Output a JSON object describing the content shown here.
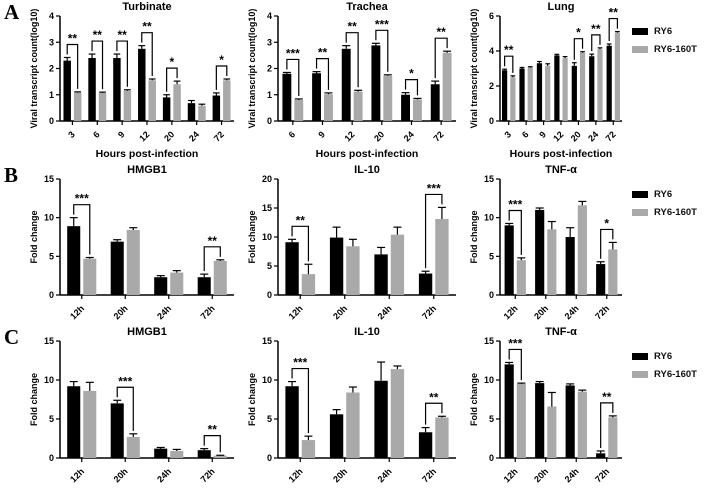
{
  "legend": {
    "items": [
      {
        "label": "RY6",
        "color": "#000000"
      },
      {
        "label": "RY6-160T",
        "color": "#a9a9a9"
      }
    ]
  },
  "panels": [
    {
      "letter": "A"
    },
    {
      "letter": "B"
    },
    {
      "letter": "C"
    }
  ],
  "chart_data": [
    {
      "type": "bar",
      "panel": "A",
      "title": "Turbinate",
      "ylabel": "Viral transcript count(log10)",
      "xlabel": "Hours post-infection",
      "ylim": [
        0,
        4
      ],
      "yticks": [
        0,
        1,
        2,
        3,
        4
      ],
      "categories": [
        "3",
        "6",
        "9",
        "12",
        "20",
        "24",
        "72"
      ],
      "series": [
        {
          "name": "RY6",
          "color": "#000000",
          "values": [
            2.3,
            2.4,
            2.4,
            2.75,
            0.9,
            0.68,
            0.97
          ],
          "errors": [
            0.12,
            0.15,
            0.15,
            0.12,
            0.1,
            0.1,
            0.1
          ]
        },
        {
          "name": "RY6-160T",
          "color": "#a9a9a9",
          "values": [
            1.08,
            1.07,
            1.15,
            1.55,
            1.4,
            0.58,
            1.55
          ],
          "errors": [
            0.03,
            0.03,
            0.04,
            0.05,
            0.12,
            0.06,
            0.05
          ]
        }
      ],
      "significance": [
        {
          "category": "3",
          "label": "**"
        },
        {
          "category": "6",
          "label": "**"
        },
        {
          "category": "9",
          "label": "**"
        },
        {
          "category": "12",
          "label": "**"
        },
        {
          "category": "20",
          "label": "*"
        },
        {
          "category": "72",
          "label": "*"
        }
      ]
    },
    {
      "type": "bar",
      "panel": "A",
      "title": "Trachea",
      "ylabel": "Viral transcript count(log10)",
      "xlabel": "Hours post-infection",
      "ylim": [
        0,
        4
      ],
      "yticks": [
        0,
        1,
        2,
        3,
        4
      ],
      "categories": [
        "6",
        "9",
        "12",
        "20",
        "24",
        "72"
      ],
      "series": [
        {
          "name": "RY6",
          "color": "#000000",
          "values": [
            1.8,
            1.82,
            2.75,
            2.88,
            1.0,
            1.4
          ],
          "errors": [
            0.05,
            0.06,
            0.12,
            0.08,
            0.08,
            0.12
          ]
        },
        {
          "name": "RY6-160T",
          "color": "#a9a9a9",
          "values": [
            0.8,
            1.02,
            1.12,
            1.72,
            0.82,
            2.6
          ],
          "errors": [
            0.04,
            0.05,
            0.05,
            0.04,
            0.04,
            0.06
          ]
        }
      ],
      "significance": [
        {
          "category": "6",
          "label": "***"
        },
        {
          "category": "9",
          "label": "**"
        },
        {
          "category": "12",
          "label": "**"
        },
        {
          "category": "20",
          "label": "***"
        },
        {
          "category": "24",
          "label": "*"
        },
        {
          "category": "72",
          "label": "**"
        }
      ]
    },
    {
      "type": "bar",
      "panel": "A",
      "title": "Lung",
      "ylabel": "Viral transcript count(log10)",
      "xlabel": "Hours post-infection",
      "ylim": [
        0,
        6
      ],
      "yticks": [
        0,
        2,
        4,
        6
      ],
      "categories": [
        "3",
        "6",
        "9",
        "12",
        "20",
        "24",
        "72"
      ],
      "series": [
        {
          "name": "RY6",
          "color": "#000000",
          "values": [
            2.9,
            3.0,
            3.3,
            3.75,
            3.15,
            3.7,
            4.3
          ],
          "errors": [
            0.06,
            0.06,
            0.1,
            0.06,
            0.18,
            0.12,
            0.1
          ]
        },
        {
          "name": "RY6-160T",
          "color": "#a9a9a9",
          "values": [
            2.5,
            3.05,
            3.15,
            3.6,
            3.9,
            4.1,
            5.05
          ],
          "errors": [
            0.08,
            0.05,
            0.12,
            0.08,
            0.06,
            0.08,
            0.06
          ]
        }
      ],
      "significance": [
        {
          "category": "3",
          "label": "**"
        },
        {
          "category": "20",
          "label": "*"
        },
        {
          "category": "24",
          "label": "**"
        },
        {
          "category": "72",
          "label": "**"
        }
      ]
    },
    {
      "type": "bar",
      "panel": "B",
      "title": "HMGB1",
      "ylabel": "Fold change",
      "xlabel": "",
      "ylim": [
        0,
        15
      ],
      "yticks": [
        0,
        5,
        10,
        15
      ],
      "categories": [
        "12h",
        "20h",
        "24h",
        "72h"
      ],
      "series": [
        {
          "name": "RY6",
          "color": "#000000",
          "values": [
            8.9,
            6.9,
            2.3,
            2.3
          ],
          "errors": [
            1.1,
            0.25,
            0.2,
            0.4
          ]
        },
        {
          "name": "RY6-160T",
          "color": "#a9a9a9",
          "values": [
            4.7,
            8.4,
            2.9,
            4.4
          ],
          "errors": [
            0.15,
            0.3,
            0.25,
            0.15
          ]
        }
      ],
      "significance": [
        {
          "category": "12h",
          "label": "***"
        },
        {
          "category": "72h",
          "label": "**"
        }
      ]
    },
    {
      "type": "bar",
      "panel": "B",
      "title": "IL-10",
      "ylabel": "Fold change",
      "xlabel": "",
      "ylim": [
        0,
        20
      ],
      "yticks": [
        0,
        5,
        10,
        15,
        20
      ],
      "categories": [
        "12h",
        "20h",
        "24h",
        "72h"
      ],
      "series": [
        {
          "name": "RY6",
          "color": "#000000",
          "values": [
            9.1,
            9.9,
            7.0,
            3.7
          ],
          "errors": [
            0.5,
            1.8,
            1.2,
            0.4
          ]
        },
        {
          "name": "RY6-160T",
          "color": "#a9a9a9",
          "values": [
            3.6,
            8.4,
            10.4,
            13.1
          ],
          "errors": [
            1.7,
            1.2,
            1.3,
            2.0
          ]
        }
      ],
      "significance": [
        {
          "category": "12h",
          "label": "**"
        },
        {
          "category": "72h",
          "label": "***"
        }
      ]
    },
    {
      "type": "bar",
      "panel": "B",
      "title": "TNF-α",
      "ylabel": "Fold change",
      "xlabel": "",
      "ylim": [
        0,
        15
      ],
      "yticks": [
        0,
        5,
        10,
        15
      ],
      "categories": [
        "12h",
        "20h",
        "24h",
        "72h"
      ],
      "series": [
        {
          "name": "RY6",
          "color": "#000000",
          "values": [
            9.0,
            11.0,
            7.5,
            4.0
          ],
          "errors": [
            0.25,
            0.25,
            1.2,
            0.3
          ]
        },
        {
          "name": "RY6-160T",
          "color": "#a9a9a9",
          "values": [
            4.5,
            8.5,
            11.6,
            5.9
          ],
          "errors": [
            0.3,
            1.0,
            0.5,
            0.9
          ]
        }
      ],
      "significance": [
        {
          "category": "12h",
          "label": "***"
        },
        {
          "category": "72h",
          "label": "*"
        }
      ]
    },
    {
      "type": "bar",
      "panel": "C",
      "title": "HMGB1",
      "ylabel": "Fold change",
      "xlabel": "",
      "ylim": [
        0,
        15
      ],
      "yticks": [
        0,
        5,
        10,
        15
      ],
      "categories": [
        "12h",
        "20h",
        "24h",
        "72h"
      ],
      "series": [
        {
          "name": "RY6",
          "color": "#000000",
          "values": [
            9.2,
            7.0,
            1.2,
            1.0
          ],
          "errors": [
            0.6,
            0.4,
            0.15,
            0.2
          ]
        },
        {
          "name": "RY6-160T",
          "color": "#a9a9a9",
          "values": [
            8.6,
            2.7,
            0.9,
            0.3
          ],
          "errors": [
            1.1,
            0.4,
            0.2,
            0.05
          ]
        }
      ],
      "significance": [
        {
          "category": "20h",
          "label": "***"
        },
        {
          "category": "72h",
          "label": "**"
        }
      ]
    },
    {
      "type": "bar",
      "panel": "C",
      "title": "IL-10",
      "ylabel": "Fold change",
      "xlabel": "",
      "ylim": [
        0,
        15
      ],
      "yticks": [
        0,
        5,
        10,
        15
      ],
      "categories": [
        "12h",
        "20h",
        "24h",
        "72h"
      ],
      "series": [
        {
          "name": "RY6",
          "color": "#000000",
          "values": [
            9.2,
            5.6,
            9.9,
            3.3
          ],
          "errors": [
            0.6,
            0.6,
            2.4,
            0.6
          ]
        },
        {
          "name": "RY6-160T",
          "color": "#a9a9a9",
          "values": [
            2.3,
            8.4,
            11.4,
            5.2
          ],
          "errors": [
            0.5,
            0.7,
            0.4,
            0.15
          ]
        }
      ],
      "significance": [
        {
          "category": "12h",
          "label": "***"
        },
        {
          "category": "72h",
          "label": "**"
        }
      ]
    },
    {
      "type": "bar",
      "panel": "C",
      "title": "TNF-α",
      "ylabel": "Fold change",
      "xlabel": "",
      "ylim": [
        0,
        15
      ],
      "yticks": [
        0,
        5,
        10,
        15
      ],
      "categories": [
        "12h",
        "20h",
        "24h",
        "72h"
      ],
      "series": [
        {
          "name": "RY6",
          "color": "#000000",
          "values": [
            12.0,
            9.6,
            9.3,
            0.6
          ],
          "errors": [
            0.25,
            0.2,
            0.2,
            0.3
          ]
        },
        {
          "name": "RY6-160T",
          "color": "#a9a9a9",
          "values": [
            9.5,
            6.6,
            8.5,
            5.2
          ],
          "errors": [
            0.1,
            1.8,
            0.2,
            0.2
          ]
        }
      ],
      "significance": [
        {
          "category": "12h",
          "label": "***"
        },
        {
          "category": "72h",
          "label": "**"
        }
      ]
    }
  ]
}
